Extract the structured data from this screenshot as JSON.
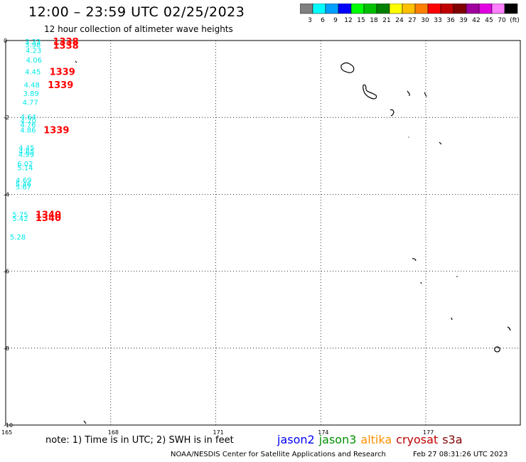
{
  "header": {
    "title": "12:00 – 23:59 UTC 02/25/2023",
    "subtitle": "12 hour collection of altimeter wave heights"
  },
  "color_scale": {
    "colors": [
      "#808080",
      "#00ffff",
      "#00a0ff",
      "#0000ff",
      "#00ff00",
      "#00c000",
      "#008000",
      "#ffff00",
      "#ffc000",
      "#ff8000",
      "#ff0000",
      "#c00000",
      "#800000",
      "#a000a0",
      "#e000e0",
      "#ff80ff",
      "#000000"
    ],
    "labels": [
      "3",
      "6",
      "9",
      "12",
      "15",
      "18",
      "21",
      "24",
      "27",
      "30",
      "33",
      "36",
      "39",
      "42",
      "45",
      "70",
      "(ft)"
    ]
  },
  "axes": {
    "lat_labels": [
      "0",
      "-2",
      "-4",
      "-6",
      "-8",
      "-10"
    ],
    "lon_labels": [
      "165",
      "168",
      "171",
      "174",
      "177"
    ]
  },
  "observations": {
    "swh": [
      {
        "text": "3.33",
        "lat": -0.02,
        "lon": 165.55
      },
      {
        "text": "3.98",
        "lat": -0.1,
        "lon": 165.55
      },
      {
        "text": "4.23",
        "lat": -0.25,
        "lon": 165.57
      },
      {
        "text": "4.06",
        "lat": -0.5,
        "lon": 165.58
      },
      {
        "text": "4.45",
        "lat": -0.8,
        "lon": 165.55
      },
      {
        "text": "4.48",
        "lat": -1.15,
        "lon": 165.52
      },
      {
        "text": "3.89",
        "lat": -1.37,
        "lon": 165.5
      },
      {
        "text": "4.77",
        "lat": -1.6,
        "lon": 165.48
      },
      {
        "text": "4.64",
        "lat": -1.98,
        "lon": 165.42
      },
      {
        "text": "4.70",
        "lat": -2.08,
        "lon": 165.42
      },
      {
        "text": "4.76",
        "lat": -2.18,
        "lon": 165.41
      },
      {
        "text": "4.86",
        "lat": -2.32,
        "lon": 165.41
      },
      {
        "text": "4.45",
        "lat": -2.78,
        "lon": 165.37
      },
      {
        "text": "4.65",
        "lat": -2.87,
        "lon": 165.37
      },
      {
        "text": "4.99",
        "lat": -2.96,
        "lon": 165.36
      },
      {
        "text": "6.02",
        "lat": -3.2,
        "lon": 165.33
      },
      {
        "text": "5.14",
        "lat": -3.3,
        "lon": 165.33
      },
      {
        "text": "4.69",
        "lat": -3.62,
        "lon": 165.29
      },
      {
        "text": "5.46",
        "lat": -3.72,
        "lon": 165.28
      },
      {
        "text": "5.67",
        "lat": -3.8,
        "lon": 165.28
      },
      {
        "text": "5.75",
        "lat": -4.52,
        "lon": 165.19
      },
      {
        "text": "5.42",
        "lat": -4.62,
        "lon": 165.19
      },
      {
        "text": "5.28",
        "lat": -5.1,
        "lon": 165.12
      }
    ],
    "time": [
      {
        "text": "1338",
        "lat": -0.02,
        "lon": 166.35
      },
      {
        "text": "1338",
        "lat": -0.12,
        "lon": 166.35
      },
      {
        "text": "1339",
        "lat": -0.8,
        "lon": 166.25
      },
      {
        "text": "1339",
        "lat": -1.15,
        "lon": 166.2
      },
      {
        "text": "1339",
        "lat": -2.32,
        "lon": 166.08
      },
      {
        "text": "1340",
        "lat": -4.52,
        "lon": 165.85
      },
      {
        "text": "1340",
        "lat": -4.6,
        "lon": 165.85
      }
    ]
  },
  "footer": {
    "note": "note:  1) Time is in UTC;  2) SWH is in feet",
    "satellites": [
      {
        "name": "jason2",
        "color": "#0000ff"
      },
      {
        "name": "jason3",
        "color": "#009000"
      },
      {
        "name": "altika",
        "color": "#ff9000"
      },
      {
        "name": "cryosat",
        "color": "#c00000"
      },
      {
        "name": "s3a",
        "color": "#800000"
      }
    ],
    "credit": "NOAA/NESDIS Center for Satellite Applications and Research",
    "timestamp": "Feb 27 08:31:26 UTC 2023"
  }
}
